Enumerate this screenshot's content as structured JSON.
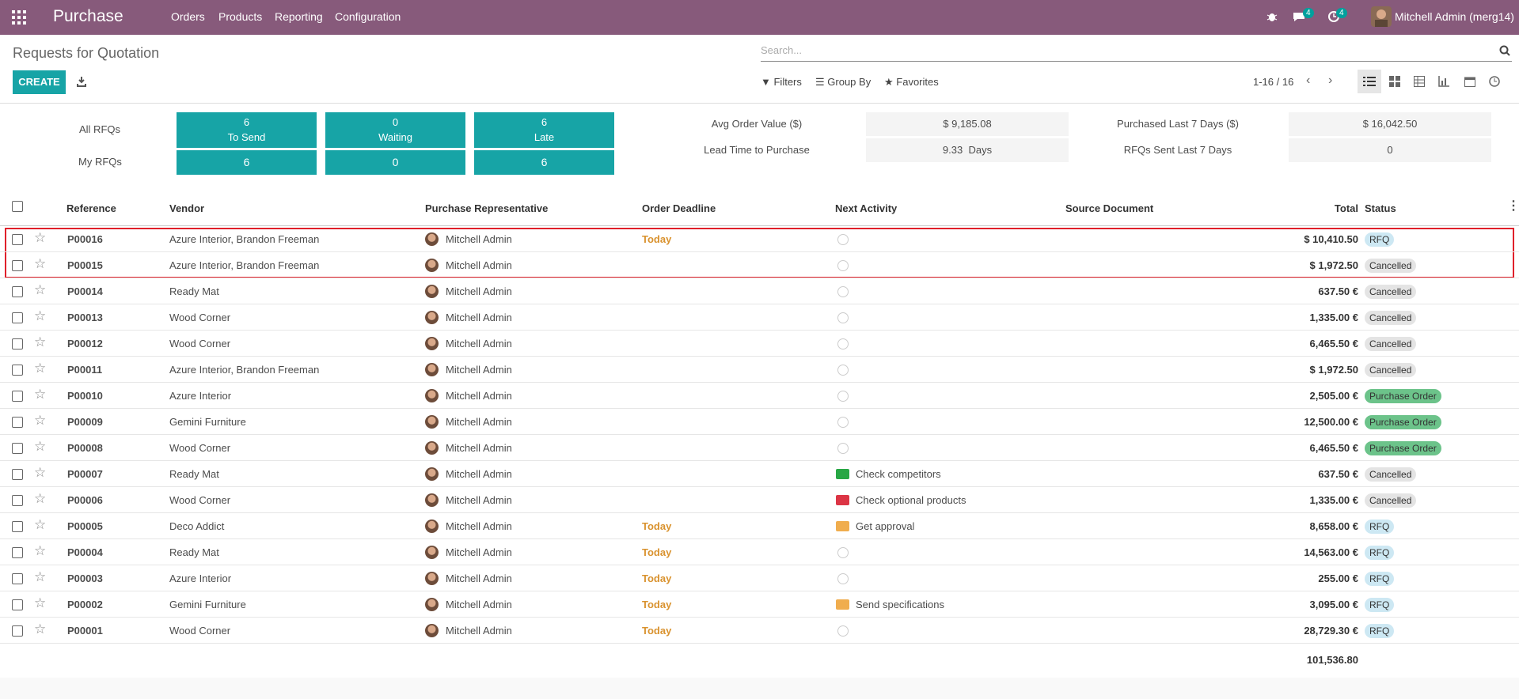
{
  "navbar": {
    "app": "Purchase",
    "menus": [
      "Orders",
      "Products",
      "Reporting",
      "Configuration"
    ],
    "messages_badge": "4",
    "activities_badge": "4",
    "user": "Mitchell Admin (merg14)"
  },
  "control": {
    "title": "Requests for Quotation",
    "create": "CREATE",
    "search": "Search...",
    "filters": "Filters",
    "group_by": "Group By",
    "favorites": "Favorites",
    "pager": "1-16 / 16"
  },
  "dashboard": {
    "row_labels": [
      "All RFQs",
      "My RFQs"
    ],
    "tiles": [
      {
        "count": "6",
        "label": "To Send",
        "mine": "6"
      },
      {
        "count": "0",
        "label": "Waiting",
        "mine": "0"
      },
      {
        "count": "6",
        "label": "Late",
        "mine": "6"
      }
    ],
    "stats": [
      {
        "label": "Avg Order Value ($)",
        "value": "$ 9,185.08"
      },
      {
        "label": "Lead Time to Purchase",
        "value": "9.33  Days"
      },
      {
        "label": "Purchased Last 7 Days ($)",
        "value": "$ 16,042.50"
      },
      {
        "label": "RFQs Sent Last 7 Days",
        "value": "0"
      }
    ]
  },
  "table": {
    "columns": [
      "Reference",
      "Vendor",
      "Purchase Representative",
      "Order Deadline",
      "Next Activity",
      "Source Document",
      "Total",
      "Status"
    ],
    "rows": [
      {
        "reference": "P00016",
        "vendor": "Azure Interior, Brandon Freeman",
        "representative": "Mitchell Admin",
        "deadline": "Today",
        "activity": null,
        "activity_color": null,
        "total": "$ 10,410.50",
        "status": "RFQ",
        "status_color": "#cde8f3"
      },
      {
        "reference": "P00015",
        "vendor": "Azure Interior, Brandon Freeman",
        "representative": "Mitchell Admin",
        "deadline": null,
        "activity": null,
        "activity_color": null,
        "total": "$ 1,972.50",
        "status": "Cancelled",
        "status_color": "#e4e4e4"
      },
      {
        "reference": "P00014",
        "vendor": "Ready Mat",
        "representative": "Mitchell Admin",
        "deadline": null,
        "activity": null,
        "activity_color": null,
        "total": "637.50 €",
        "status": "Cancelled",
        "status_color": "#e4e4e4"
      },
      {
        "reference": "P00013",
        "vendor": "Wood Corner",
        "representative": "Mitchell Admin",
        "deadline": null,
        "activity": null,
        "activity_color": null,
        "total": "1,335.00 €",
        "status": "Cancelled",
        "status_color": "#e4e4e4"
      },
      {
        "reference": "P00012",
        "vendor": "Wood Corner",
        "representative": "Mitchell Admin",
        "deadline": null,
        "activity": null,
        "activity_color": null,
        "total": "6,465.50 €",
        "status": "Cancelled",
        "status_color": "#e4e4e4"
      },
      {
        "reference": "P00011",
        "vendor": "Azure Interior, Brandon Freeman",
        "representative": "Mitchell Admin",
        "deadline": null,
        "activity": null,
        "activity_color": null,
        "total": "$ 1,972.50",
        "status": "Cancelled",
        "status_color": "#e4e4e4"
      },
      {
        "reference": "P00010",
        "vendor": "Azure Interior",
        "representative": "Mitchell Admin",
        "deadline": null,
        "activity": null,
        "activity_color": null,
        "total": "2,505.00 €",
        "status": "Purchase Order",
        "status_color": "#6cc38a"
      },
      {
        "reference": "P00009",
        "vendor": "Gemini Furniture",
        "representative": "Mitchell Admin",
        "deadline": null,
        "activity": null,
        "activity_color": null,
        "total": "12,500.00 €",
        "status": "Purchase Order",
        "status_color": "#6cc38a"
      },
      {
        "reference": "P00008",
        "vendor": "Wood Corner",
        "representative": "Mitchell Admin",
        "deadline": null,
        "activity": null,
        "activity_color": null,
        "total": "6,465.50 €",
        "status": "Purchase Order",
        "status_color": "#6cc38a"
      },
      {
        "reference": "P00007",
        "vendor": "Ready Mat",
        "representative": "Mitchell Admin",
        "deadline": null,
        "activity": "Check competitors",
        "activity_color": "#28a745",
        "total": "637.50 €",
        "status": "Cancelled",
        "status_color": "#e4e4e4"
      },
      {
        "reference": "P00006",
        "vendor": "Wood Corner",
        "representative": "Mitchell Admin",
        "deadline": null,
        "activity": "Check optional products",
        "activity_color": "#dc3545",
        "total": "1,335.00 €",
        "status": "Cancelled",
        "status_color": "#e4e4e4"
      },
      {
        "reference": "P00005",
        "vendor": "Deco Addict",
        "representative": "Mitchell Admin",
        "deadline": "Today",
        "activity": "Get approval",
        "activity_color": "#f0ad4e",
        "total": "8,658.00 €",
        "status": "RFQ",
        "status_color": "#cde8f3"
      },
      {
        "reference": "P00004",
        "vendor": "Ready Mat",
        "representative": "Mitchell Admin",
        "deadline": "Today",
        "activity": null,
        "activity_color": null,
        "total": "14,563.00 €",
        "status": "RFQ",
        "status_color": "#cde8f3"
      },
      {
        "reference": "P00003",
        "vendor": "Azure Interior",
        "representative": "Mitchell Admin",
        "deadline": "Today",
        "activity": null,
        "activity_color": null,
        "total": "255.00 €",
        "status": "RFQ",
        "status_color": "#cde8f3"
      },
      {
        "reference": "P00002",
        "vendor": "Gemini Furniture",
        "representative": "Mitchell Admin",
        "deadline": "Today",
        "activity": "Send specifications",
        "activity_color": "#f0ad4e",
        "total": "3,095.00 €",
        "status": "RFQ",
        "status_color": "#cde8f3"
      },
      {
        "reference": "P00001",
        "vendor": "Wood Corner",
        "representative": "Mitchell Admin",
        "deadline": "Today",
        "activity": null,
        "activity_color": null,
        "total": "28,729.30 €",
        "status": "RFQ",
        "status_color": "#cde8f3"
      }
    ],
    "sum": "101,536.80"
  }
}
